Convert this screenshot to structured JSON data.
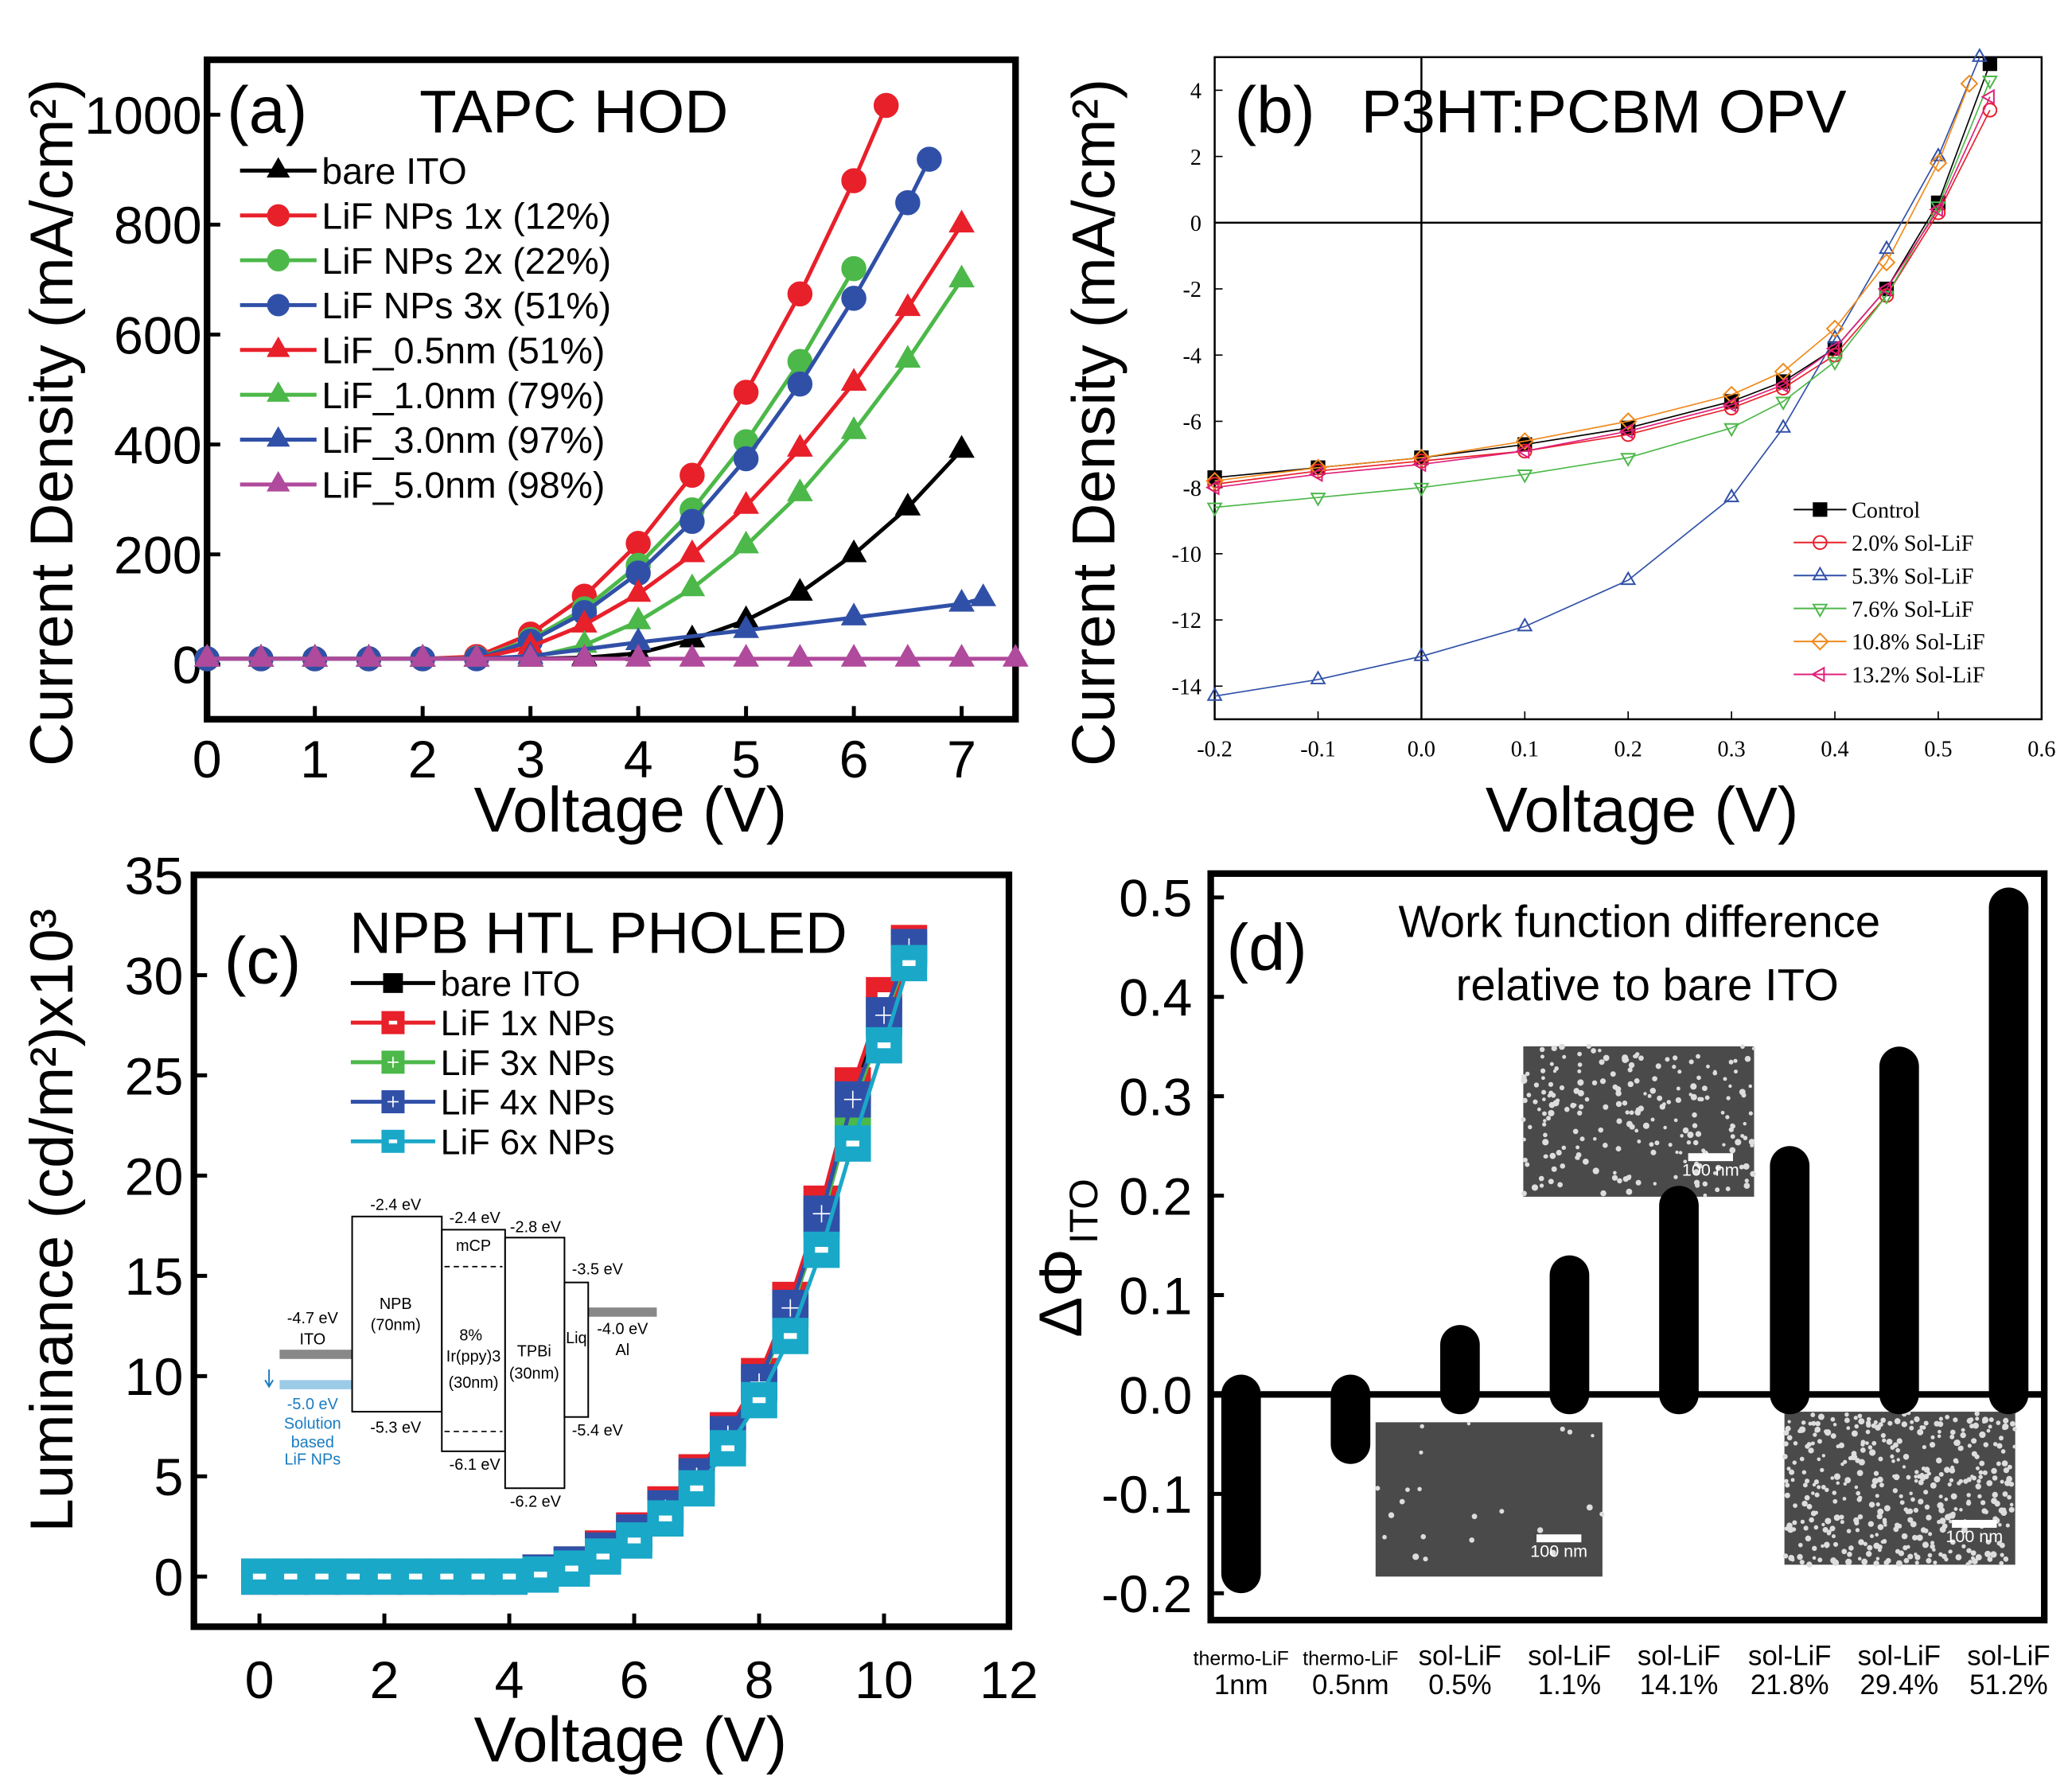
{
  "chart_data": [
    {
      "panel": "(a)",
      "type": "line",
      "title": "TAPC HOD",
      "xlabel": "Voltage (V)",
      "ylabel": "Current Density (mA/cm²)",
      "xlim": [
        0,
        7.5
      ],
      "ylim": [
        -100,
        1100
      ],
      "xticks": [
        0,
        1,
        2,
        3,
        4,
        5,
        6,
        7
      ],
      "yticks": [
        0,
        200,
        400,
        600,
        800,
        1000
      ],
      "grid": false,
      "legend_position": "top-left",
      "series": [
        {
          "name": "bare ITO",
          "color": "#000000",
          "marker": "triangle",
          "x": [
            0,
            0.5,
            1,
            1.5,
            2,
            2.5,
            3,
            3.5,
            4,
            4.5,
            5,
            5.5,
            6,
            6.5,
            7
          ],
          "y": [
            10,
            10,
            10,
            10,
            10,
            10,
            10,
            12,
            20,
            45,
            80,
            130,
            200,
            285,
            390
          ]
        },
        {
          "name": "LiF NPs 1x (12%)",
          "color": "#e8202a",
          "marker": "circle",
          "x": [
            0,
            0.5,
            1,
            1.5,
            2,
            2.5,
            3,
            3.5,
            4,
            4.5,
            5,
            5.5,
            6,
            6.3
          ],
          "y": [
            10,
            10,
            10,
            10,
            10,
            14,
            55,
            124,
            220,
            344,
            495,
            674,
            880,
            1017
          ]
        },
        {
          "name": "LiF NPs 2x (22%)",
          "color": "#4cb849",
          "marker": "circle",
          "x": [
            0,
            0.5,
            1,
            1.5,
            2,
            2.5,
            3,
            3.5,
            4,
            4.5,
            5,
            5.5,
            6
          ],
          "y": [
            10,
            10,
            10,
            10,
            10,
            11,
            45,
            101,
            180,
            281,
            405,
            551,
            720
          ]
        },
        {
          "name": "LiF NPs 3x (51%)",
          "color": "#3050a8",
          "marker": "circle",
          "x": [
            0,
            0.5,
            1,
            1.5,
            2,
            2.5,
            3,
            3.5,
            4,
            4.5,
            5,
            5.5,
            6,
            6.5,
            6.7
          ],
          "y": [
            10,
            10,
            10,
            10,
            10,
            10,
            42,
            94,
            166,
            260,
            374,
            510,
            666,
            840,
            919
          ]
        },
        {
          "name": "LiF_0.5nm (51%)",
          "color": "#e8202a",
          "marker": "triangle",
          "x": [
            0,
            0.5,
            1,
            1.5,
            2,
            2.5,
            3,
            3.5,
            4,
            4.5,
            5,
            5.5,
            6,
            6.5,
            7
          ],
          "y": [
            10,
            10,
            10,
            10,
            10,
            10,
            32,
            72,
            128,
            200,
            288,
            392,
            512,
            648,
            800
          ]
        },
        {
          "name": "LiF_1.0nm (79%)",
          "color": "#4cb849",
          "marker": "triangle",
          "x": [
            0,
            0.5,
            1,
            1.5,
            2,
            2.5,
            3,
            3.5,
            4,
            4.5,
            5,
            5.5,
            6,
            6.5,
            7
          ],
          "y": [
            10,
            10,
            10,
            10,
            10,
            10,
            12,
            35,
            78,
            138,
            216,
            311,
            424,
            554,
            700
          ]
        },
        {
          "name": "LiF_3.0nm (97%)",
          "color": "#3050a8",
          "marker": "triangle",
          "x": [
            0,
            0.5,
            1,
            1.5,
            2,
            2.5,
            3,
            4,
            5,
            6,
            7,
            7.2
          ],
          "y": [
            10,
            10,
            10,
            10,
            10,
            10,
            15,
            40,
            62,
            85,
            110,
            120
          ]
        },
        {
          "name": "LiF_5.0nm (98%)",
          "color": "#b04a9c",
          "marker": "triangle",
          "x": [
            0,
            0.5,
            1,
            1.5,
            2,
            2.5,
            3,
            3.5,
            4,
            4.5,
            5,
            5.5,
            6,
            6.5,
            7,
            7.5
          ],
          "y": [
            10,
            10,
            10,
            10,
            10,
            10,
            10,
            10,
            10,
            10,
            10,
            10,
            10,
            10,
            10,
            10
          ]
        }
      ]
    },
    {
      "panel": "(b)",
      "type": "line",
      "title": "P3HT:PCBM OPV",
      "xlabel": "Voltage (V)",
      "ylabel": "Current Density (mA/cm²)",
      "xlim": [
        -0.2,
        0.6
      ],
      "ylim": [
        -15,
        5
      ],
      "xticks": [
        "-0.2",
        "-0.1",
        "0.0",
        "0.1",
        "0.2",
        "0.3",
        "0.4",
        "0.5",
        "0.6"
      ],
      "yticks": [
        -14,
        -12,
        -10,
        -8,
        -6,
        -4,
        -2,
        0,
        2,
        4
      ],
      "grid": false,
      "legend_position": "bottom-right",
      "series": [
        {
          "name": "Control",
          "color": "#000000",
          "marker": "square",
          "x": [
            -0.2,
            -0.1,
            0,
            0.1,
            0.2,
            0.3,
            0.35,
            0.4,
            0.45,
            0.5,
            0.55
          ],
          "y": [
            -7.7,
            -7.4,
            -7.1,
            -6.7,
            -6.2,
            -5.4,
            -4.8,
            -3.8,
            -2.0,
            0.6,
            4.8
          ]
        },
        {
          "name": "2.0% Sol-LiF",
          "color": "#e8202a",
          "marker": "circle",
          "x": [
            -0.2,
            -0.1,
            0,
            0.1,
            0.2,
            0.3,
            0.35,
            0.4,
            0.45,
            0.5,
            0.55
          ],
          "y": [
            -7.9,
            -7.5,
            -7.2,
            -6.9,
            -6.4,
            -5.6,
            -5.0,
            -4.0,
            -2.2,
            0.3,
            3.4
          ]
        },
        {
          "name": "5.3% Sol-LiF",
          "color": "#3050a8",
          "marker": "triangle",
          "x": [
            -0.2,
            -0.1,
            0,
            0.1,
            0.2,
            0.3,
            0.35,
            0.4,
            0.45,
            0.5,
            0.54
          ],
          "y": [
            -14.3,
            -13.8,
            -13.1,
            -12.2,
            -10.8,
            -8.3,
            -6.2,
            -3.5,
            -0.8,
            2.0,
            5.0
          ]
        },
        {
          "name": "7.6% Sol-LiF",
          "color": "#4cb849",
          "marker": "triangle-down",
          "x": [
            -0.2,
            -0.1,
            0,
            0.1,
            0.2,
            0.3,
            0.35,
            0.4,
            0.45,
            0.5,
            0.55
          ],
          "y": [
            -8.6,
            -8.3,
            -8.0,
            -7.6,
            -7.1,
            -6.2,
            -5.4,
            -4.2,
            -2.2,
            0.5,
            4.3
          ]
        },
        {
          "name": "10.8% Sol-LiF",
          "color": "#f08a1c",
          "marker": "diamond",
          "x": [
            -0.2,
            -0.1,
            0,
            0.1,
            0.2,
            0.3,
            0.35,
            0.4,
            0.45,
            0.5,
            0.53
          ],
          "y": [
            -7.8,
            -7.4,
            -7.1,
            -6.6,
            -6.0,
            -5.2,
            -4.5,
            -3.2,
            -1.2,
            1.8,
            4.2
          ]
        },
        {
          "name": "13.2% Sol-LiF",
          "color": "#e0207a",
          "marker": "triangle-left",
          "x": [
            -0.2,
            -0.1,
            0,
            0.1,
            0.2,
            0.3,
            0.35,
            0.4,
            0.45,
            0.5,
            0.55
          ],
          "y": [
            -8.0,
            -7.6,
            -7.3,
            -6.9,
            -6.3,
            -5.5,
            -4.9,
            -3.8,
            -2.0,
            0.4,
            3.8
          ]
        }
      ]
    },
    {
      "panel": "(c)",
      "type": "line",
      "title": "NPB HTL PHOLED",
      "xlabel": "Voltage (V)",
      "ylabel": "Luminance (cd/m²)x10³",
      "xlim": [
        -1.05,
        12
      ],
      "ylim": [
        -2.5,
        35
      ],
      "xticks": [
        0,
        2,
        4,
        6,
        8,
        10,
        12
      ],
      "yticks": [
        0,
        5,
        10,
        15,
        20,
        25,
        30,
        35
      ],
      "grid": false,
      "legend_position": "top-left",
      "series": [
        {
          "name": "bare ITO",
          "color": "#000000",
          "marker": "square",
          "x": [
            0,
            0.5,
            1,
            1.5,
            2,
            2.5,
            3,
            3.5,
            4,
            4.5,
            5,
            5.5,
            6,
            6.5,
            7,
            7.5,
            8,
            8.5,
            9,
            9.5,
            10,
            10.4
          ],
          "y": [
            0,
            0,
            0,
            0,
            0,
            0,
            0,
            0,
            0,
            0.2,
            0.6,
            1.3,
            2.2,
            3.5,
            5.1,
            7.2,
            9.9,
            13.6,
            18.3,
            24.2,
            28.8,
            31.5
          ]
        },
        {
          "name": "LiF 1x NPs",
          "color": "#e8202a",
          "marker": "square-open",
          "x": [
            0,
            0.5,
            1,
            1.5,
            2,
            2.5,
            3,
            3.5,
            4,
            4.5,
            5,
            5.5,
            6,
            6.5,
            7,
            7.5,
            8,
            8.5,
            9,
            9.5,
            10,
            10.4
          ],
          "y": [
            0,
            0,
            0,
            0,
            0,
            0,
            0,
            0,
            0,
            0.2,
            0.6,
            1.4,
            2.3,
            3.6,
            5.2,
            7.3,
            10.0,
            13.8,
            18.6,
            24.5,
            29.0,
            31.6
          ]
        },
        {
          "name": "LiF 3x NPs",
          "color": "#4cb849",
          "marker": "square-cross",
          "x": [
            0,
            0.5,
            1,
            1.5,
            2,
            2.5,
            3,
            3.5,
            4,
            4.5,
            5,
            5.5,
            6,
            6.5,
            7,
            7.5,
            8,
            8.5,
            9,
            9.5,
            10,
            10.4
          ],
          "y": [
            0,
            0,
            0,
            0,
            0,
            0,
            0,
            0,
            0,
            0.2,
            0.6,
            1.2,
            2.1,
            3.3,
            4.9,
            7.0,
            9.6,
            13.2,
            17.8,
            23.4,
            27.8,
            31.2
          ]
        },
        {
          "name": "LiF 4x NPs",
          "color": "#3050a8",
          "marker": "square-cross",
          "x": [
            0,
            0.5,
            1,
            1.5,
            2,
            2.5,
            3,
            3.5,
            4,
            4.5,
            5,
            5.5,
            6,
            6.5,
            7,
            7.5,
            8,
            8.5,
            9,
            9.5,
            10,
            10.4
          ],
          "y": [
            0,
            0,
            0,
            0,
            0,
            0,
            0,
            0,
            0,
            0.2,
            0.6,
            1.3,
            2.2,
            3.4,
            5.0,
            7.1,
            9.7,
            13.4,
            18.1,
            23.8,
            28.0,
            31.4
          ]
        },
        {
          "name": "LiF 6x NPs",
          "color": "#1aa8c8",
          "marker": "square-open",
          "x": [
            0,
            0.5,
            1,
            1.5,
            2,
            2.5,
            3,
            3.5,
            4,
            4.5,
            5,
            5.5,
            6,
            6.5,
            7,
            7.5,
            8,
            8.5,
            9,
            9.5,
            10,
            10.4
          ],
          "y": [
            0,
            0,
            0,
            0,
            0,
            0,
            0,
            0,
            0,
            0.1,
            0.4,
            1.0,
            1.8,
            2.9,
            4.4,
            6.4,
            8.8,
            12.0,
            16.3,
            21.6,
            26.5,
            30.6
          ]
        }
      ],
      "inset": {
        "labels": {
          "npb_top": "-2.4 eV",
          "mcp_top": "-2.4 eV",
          "tpbi_top": "-2.8 eV",
          "liq_top": "-3.5 eV",
          "ito": "-4.7 eV",
          "ito_name": "ITO",
          "al": "-4.0 eV",
          "al_name": "Al",
          "npb": "NPB",
          "npb_thick": "(70nm)",
          "mcp": "mCP",
          "irppy": "8%",
          "irppy2": "Ir(ppy)3",
          "irppy3": "(30nm)",
          "tpbi": "TPBi",
          "tpbi_thick": "(30nm)",
          "liq": "Liq",
          "npb_bottom": "-5.3 eV",
          "mcp_bottom": "-6.1 eV",
          "tpbi_bottom": "-6.2 eV",
          "liq_bottom": "-5.4 eV",
          "lif": "-5.0 eV",
          "lif2": "Solution",
          "lif3": "based",
          "lif4": "LiF NPs"
        }
      }
    },
    {
      "panel": "(d)",
      "type": "bar",
      "title": "Work function difference",
      "title2": "relative to bare ITO",
      "ylabel": "ΔΦ",
      "ylabel_sub": "ITO",
      "ylim": [
        -0.227,
        0.524
      ],
      "yticks": [
        "-0.2",
        "-0.1",
        "0.0",
        "0.1",
        "0.2",
        "0.3",
        "0.4",
        "0.5"
      ],
      "grid": false,
      "categories": [
        [
          "thermo-LiF",
          "1nm"
        ],
        [
          "thermo-LiF",
          "0.5nm"
        ],
        [
          "sol-LiF",
          "0.5%"
        ],
        [
          "sol-LiF",
          "1.1%"
        ],
        [
          "sol-LiF",
          "14.1%"
        ],
        [
          "sol-LiF",
          "21.8%"
        ],
        [
          "sol-LiF",
          "29.4%"
        ],
        [
          "sol-LiF",
          "51.2%"
        ]
      ],
      "values": [
        -0.18,
        -0.05,
        0.05,
        0.12,
        0.19,
        0.23,
        0.33,
        0.49
      ],
      "color": "#000000",
      "insets": [
        {
          "scale_label": "100 nm"
        },
        {
          "scale_label": "100 nm"
        },
        {
          "scale_label": "100 nm"
        }
      ]
    }
  ]
}
